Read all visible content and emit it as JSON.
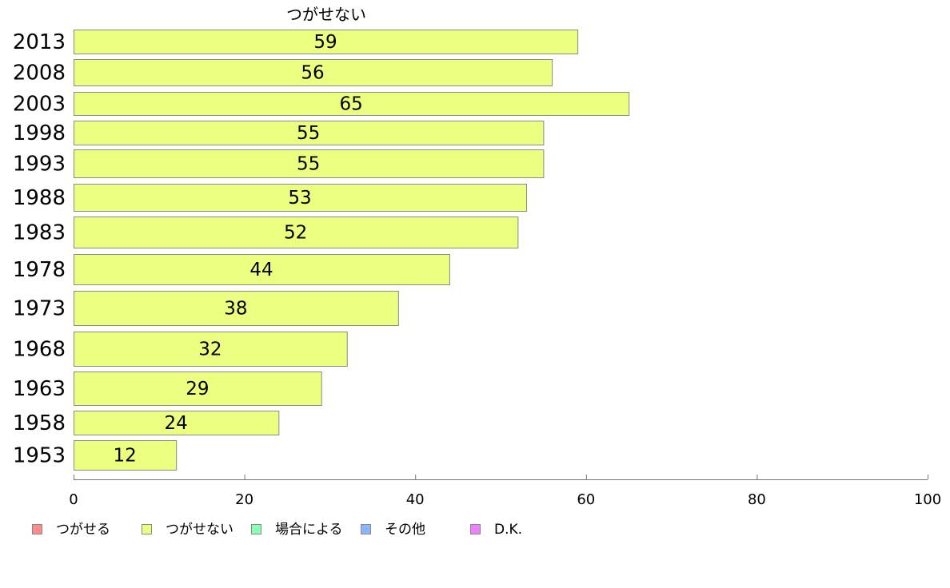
{
  "chart_data": {
    "type": "bar",
    "orientation": "horizontal",
    "column_title": "つがせない",
    "categories": [
      "2013",
      "2008",
      "2003",
      "1998",
      "1993",
      "1988",
      "1983",
      "1978",
      "1973",
      "1968",
      "1963",
      "1958",
      "1953"
    ],
    "series": [
      {
        "name": "つがせない",
        "values": [
          59,
          56,
          65,
          55,
          55,
          53,
          52,
          44,
          38,
          32,
          29,
          24,
          12
        ]
      }
    ],
    "xlim": [
      0,
      100
    ],
    "xticks": [
      0,
      20,
      40,
      60,
      80,
      100
    ],
    "grid": false,
    "legend": {
      "position": "bottom-left",
      "items": [
        {
          "label": "つがせる",
          "color": "#ff8c8c"
        },
        {
          "label": "つがせない",
          "color": "#ecff80"
        },
        {
          "label": "場合による",
          "color": "#8cffb4"
        },
        {
          "label": "その他",
          "color": "#8cb4ff"
        },
        {
          "label": "D.K.",
          "color": "#ec80ff"
        }
      ]
    },
    "bar_color": "#ecff80"
  }
}
